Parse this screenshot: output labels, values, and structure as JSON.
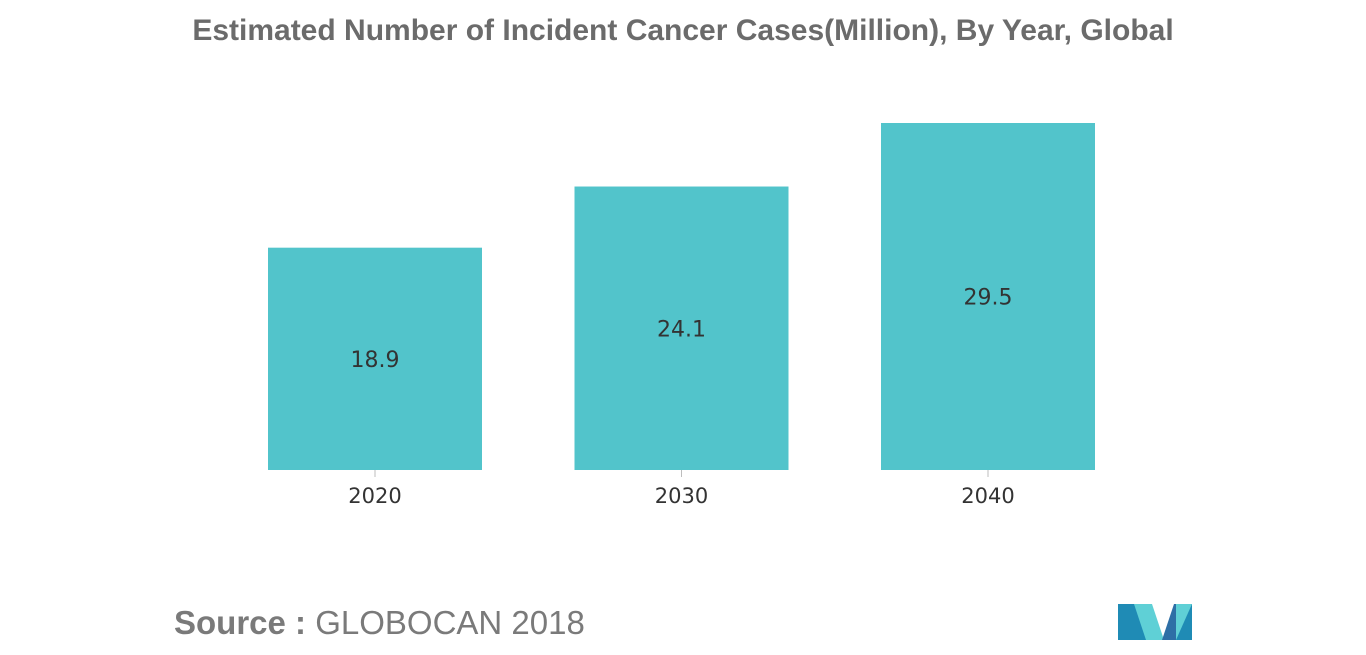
{
  "title": "Estimated Number of Incident Cancer Cases(Million), By Year, Global",
  "source": {
    "label": "Source :",
    "value": "GLOBOCAN 2018"
  },
  "logo": {
    "icon": "mordor-intelligence-logo-icon",
    "colors": [
      "#1f8bb5",
      "#5fd0d6",
      "#2e6fa6"
    ]
  },
  "colors": {
    "bar": "#52c4cb",
    "title": "#6b6b6b",
    "text": "#333333",
    "source": "#7a7a7a"
  },
  "chart_data": {
    "type": "bar",
    "title": "Estimated Number of Incident Cancer Cases(Million), By Year, Global",
    "categories": [
      "2020",
      "2030",
      "2040"
    ],
    "values": [
      18.9,
      24.1,
      29.5
    ],
    "data_labels": [
      "18.9",
      "24.1",
      "29.5"
    ],
    "xlabel": "",
    "ylabel": "",
    "ylim": [
      0,
      29.5
    ],
    "grid": false,
    "legend": "none"
  }
}
